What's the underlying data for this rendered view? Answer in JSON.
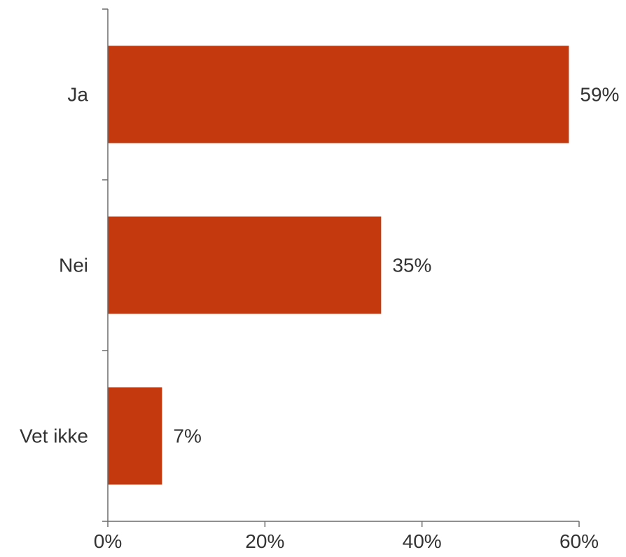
{
  "chart_data": {
    "type": "bar",
    "orientation": "horizontal",
    "categories": [
      "Ja",
      "Nei",
      "Vet ikke"
    ],
    "values": [
      58.7,
      34.8,
      6.9
    ],
    "data_labels": [
      "59%",
      "35%",
      "7%"
    ],
    "xlim": [
      0,
      60
    ],
    "xticks": [
      0,
      20,
      40,
      60
    ],
    "xtick_labels": [
      "0%",
      "20%",
      "40%",
      "60%"
    ],
    "title": "",
    "xlabel": "",
    "ylabel": "",
    "grid": false,
    "legend": "none",
    "bar_color": "#C43A0E",
    "axis_color": "#6b6b6b",
    "text_color": "#333333"
  }
}
